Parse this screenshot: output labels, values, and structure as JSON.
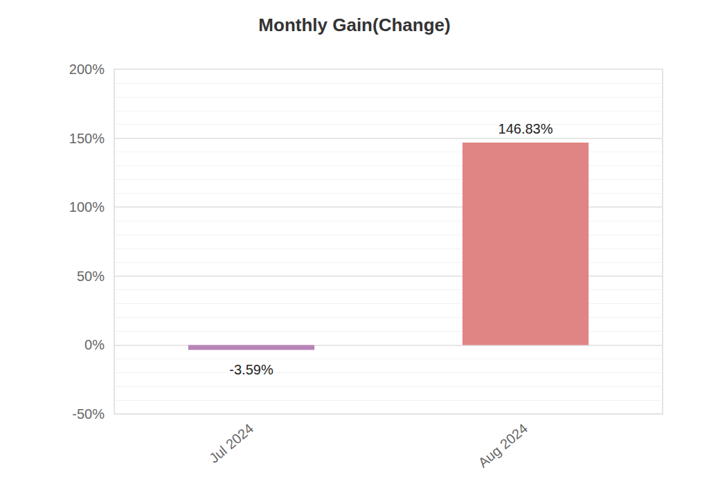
{
  "chart_data": {
    "type": "bar",
    "title": "Monthly Gain(Change)",
    "categories": [
      "Jul 2024",
      "Aug 2024"
    ],
    "values": [
      -3.59,
      146.83
    ],
    "value_labels": [
      "-3.59%",
      "146.83%"
    ],
    "colors": [
      "#b784b8",
      "#e08583"
    ],
    "ylim": [
      -50,
      200
    ],
    "yticks": [
      {
        "value": -50,
        "label": "-50%"
      },
      {
        "value": 0,
        "label": "0%"
      },
      {
        "value": 50,
        "label": "50%"
      },
      {
        "value": 100,
        "label": "100%"
      },
      {
        "value": 150,
        "label": "150%"
      },
      {
        "value": 200,
        "label": "200%"
      }
    ],
    "grid": true,
    "data_labels": true
  }
}
